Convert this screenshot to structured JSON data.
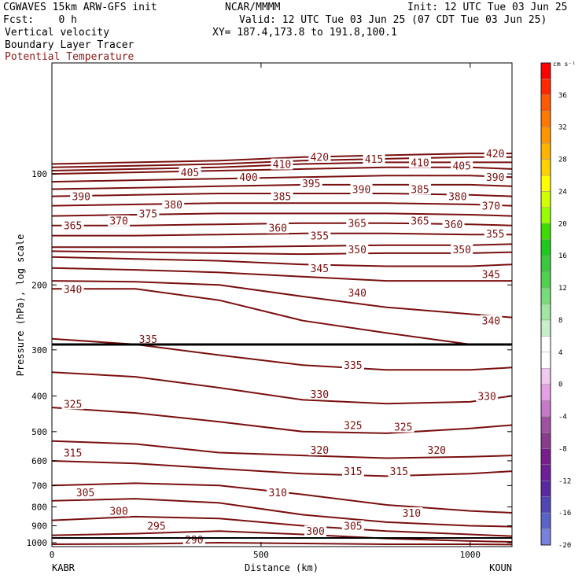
{
  "header": {
    "model": "CGWAVES 15km ARW-GFS init",
    "org": "NCAR/MMMM",
    "init": "Init: 12 UTC Tue 03 Jun 25",
    "fcst": "Fcst:    0 h",
    "valid": "Valid: 12 UTC Tue 03 Jun 25 (07 CDT Tue 03 Jun 25)",
    "field1": "Vertical velocity",
    "xy": "XY= 187.4,173.8 to 191.8,100.1",
    "field2": "Boundary Layer Tracer",
    "field3": "Potential Temperature"
  },
  "colors": {
    "contour": "#7a0f0f",
    "field3_label": "#8b1a1a"
  },
  "chart_data": {
    "type": "line",
    "subtype": "vertical cross-section contour",
    "ylabel": "Pressure (hPa), log scale",
    "xlabel": "Distance (km)",
    "x_end_labels": {
      "left": "KABR",
      "right": "KOUN"
    },
    "xlim": [
      0,
      1100
    ],
    "ylim_hpa": [
      1025,
      50
    ],
    "y_scale": "log",
    "x_ticks": [
      0,
      500,
      1000
    ],
    "y_ticks": [
      100,
      200,
      300,
      400,
      500,
      600,
      700,
      800,
      900,
      1000
    ],
    "colorbar": {
      "unit": "cm s⁻¹",
      "labels": [
        "36",
        "32",
        "28",
        "24",
        "20",
        "16",
        "12",
        "8",
        "4",
        "0",
        "-4",
        "-8",
        "-12",
        "-16",
        "-20"
      ],
      "bins": [
        "#ff0000",
        "#ff2800",
        "#ff5a00",
        "#ff7800",
        "#ff9600",
        "#ffb400",
        "#ffd200",
        "#ffff00",
        "#d2ff00",
        "#96ff00",
        "#3cdc00",
        "#1ec81e",
        "#3cc83c",
        "#50d250",
        "#78dc78",
        "#a0e6a0",
        "#c8f0c8",
        "#ffffff",
        "#ffffff",
        "#f0c8f0",
        "#e6a0e6",
        "#c878c8",
        "#a050a0",
        "#8c3c8c",
        "#781e8c",
        "#6e1e96",
        "#5a28a0",
        "#5046b4",
        "#5a64c8",
        "#7882dc"
      ]
    },
    "series": [
      {
        "name": "290",
        "x": [
          0,
          200,
          400,
          600,
          800,
          1000,
          1100
        ],
        "y": [
          1010,
          1008,
          1000,
          1005,
          1010,
          1010,
          1012
        ]
      },
      {
        "name": "295",
        "x": [
          0,
          200,
          400,
          600,
          800,
          1000,
          1100
        ],
        "y": [
          955,
          945,
          930,
          950,
          975,
          990,
          995
        ]
      },
      {
        "name": "300",
        "x": [
          0,
          200,
          400,
          600,
          800,
          1000,
          1100
        ],
        "y": [
          870,
          850,
          860,
          900,
          930,
          950,
          960
        ]
      },
      {
        "name": "305",
        "x": [
          0,
          200,
          400,
          600,
          800,
          1000,
          1100
        ],
        "y": [
          770,
          760,
          780,
          840,
          880,
          900,
          905
        ]
      },
      {
        "name": "310",
        "x": [
          0,
          200,
          400,
          600,
          800,
          1000,
          1100
        ],
        "y": [
          700,
          690,
          700,
          740,
          790,
          820,
          830
        ]
      },
      {
        "name": "315",
        "x": [
          0,
          200,
          400,
          600,
          800,
          1000,
          1100
        ],
        "y": [
          600,
          610,
          630,
          650,
          660,
          650,
          640
        ]
      },
      {
        "name": "320",
        "x": [
          0,
          200,
          400,
          600,
          800,
          1000,
          1100
        ],
        "y": [
          530,
          540,
          570,
          580,
          590,
          585,
          580
        ]
      },
      {
        "name": "325",
        "x": [
          0,
          200,
          400,
          600,
          800,
          1000,
          1100
        ],
        "y": [
          430,
          445,
          470,
          500,
          505,
          490,
          480
        ]
      },
      {
        "name": "330",
        "x": [
          0,
          200,
          400,
          600,
          800,
          1000,
          1100
        ],
        "y": [
          345,
          355,
          380,
          410,
          420,
          415,
          400
        ]
      },
      {
        "name": "335",
        "x": [
          0,
          200,
          400,
          600,
          800,
          1000,
          1100
        ],
        "y": [
          280,
          290,
          310,
          330,
          340,
          340,
          335
        ]
      },
      {
        "name": "340",
        "x": [
          0,
          200,
          400,
          600,
          800,
          1000,
          1100
        ],
        "y": [
          205,
          205,
          220,
          250,
          270,
          290,
          290
        ]
      },
      {
        "name": "345",
        "x": [
          0,
          200,
          400,
          600,
          800,
          1000,
          1100
        ],
        "y": [
          195,
          196,
          200,
          215,
          230,
          240,
          245
        ]
      },
      {
        "name": "350",
        "x": [
          0,
          200,
          400,
          600,
          800,
          1000,
          1100
        ],
        "y": [
          180,
          182,
          185,
          190,
          195,
          195,
          195
        ]
      },
      {
        "name": "355",
        "x": [
          0,
          200,
          400,
          600,
          800,
          1000,
          1100
        ],
        "y": [
          168,
          170,
          172,
          176,
          178,
          178,
          176
        ]
      },
      {
        "name": "360",
        "x": [
          0,
          200,
          400,
          600,
          800,
          1000,
          1100
        ],
        "y": [
          162,
          163,
          164,
          165,
          164,
          164,
          163
        ]
      },
      {
        "name": "365",
        "x": [
          0,
          200,
          400,
          600,
          800,
          1000,
          1100
        ],
        "y": [
          158,
          158,
          158,
          157,
          156,
          156,
          155
        ]
      },
      {
        "name": "370",
        "x": [
          0,
          200,
          400,
          600,
          800,
          1000,
          1100
        ],
        "y": [
          147,
          147,
          146,
          145,
          145,
          146,
          146
        ]
      },
      {
        "name": "375",
        "x": [
          0,
          200,
          400,
          600,
          800,
          1000,
          1100
        ],
        "y": [
          138,
          138,
          137,
          136,
          136,
          137,
          138
        ]
      },
      {
        "name": "380",
        "x": [
          0,
          200,
          400,
          600,
          800,
          1000,
          1100
        ],
        "y": [
          130,
          129,
          128,
          128,
          128,
          129,
          130
        ]
      },
      {
        "name": "385",
        "x": [
          0,
          200,
          400,
          600,
          800,
          1000,
          1100
        ],
        "y": [
          122,
          121,
          120,
          120,
          120,
          121,
          122
        ]
      },
      {
        "name": "390",
        "x": [
          0,
          200,
          400,
          600,
          800,
          1000,
          1100
        ],
        "y": [
          115,
          114,
          113,
          113,
          113,
          114,
          115
        ]
      },
      {
        "name": "395",
        "x": [
          0,
          200,
          400,
          600,
          800,
          1000,
          1100
        ],
        "y": [
          110,
          109,
          108,
          107,
          107,
          107,
          108
        ]
      },
      {
        "name": "400",
        "x": [
          0,
          200,
          400,
          600,
          800,
          1000,
          1100
        ],
        "y": [
          105,
          104,
          103,
          102,
          101,
          101,
          102
        ]
      },
      {
        "name": "405",
        "x": [
          0,
          200,
          400,
          600,
          800,
          1000,
          1100
        ],
        "y": [
          100,
          99,
          98,
          97,
          96,
          96,
          97
        ]
      },
      {
        "name": "410",
        "x": [
          0,
          200,
          400,
          600,
          800,
          1000,
          1100
        ],
        "y": [
          98,
          97,
          96,
          94,
          93,
          93,
          93
        ]
      },
      {
        "name": "415",
        "x": [
          0,
          200,
          400,
          600,
          800,
          1000,
          1100
        ],
        "y": [
          96,
          95,
          94,
          92,
          91,
          90,
          90
        ]
      },
      {
        "name": "420",
        "x": [
          0,
          200,
          400,
          600,
          800,
          1000,
          1100
        ],
        "y": [
          94,
          93,
          92,
          90,
          89,
          88,
          88
        ]
      }
    ],
    "contour_labels": [
      {
        "text": "420",
        "x": 640,
        "y": 90
      },
      {
        "text": "415",
        "x": 770,
        "y": 91
      },
      {
        "text": "420",
        "x": 1060,
        "y": 88
      },
      {
        "text": "410",
        "x": 550,
        "y": 94
      },
      {
        "text": "410",
        "x": 880,
        "y": 93
      },
      {
        "text": "405",
        "x": 330,
        "y": 99
      },
      {
        "text": "405",
        "x": 980,
        "y": 95
      },
      {
        "text": "400",
        "x": 470,
        "y": 102
      },
      {
        "text": "390",
        "x": 1060,
        "y": 102
      },
      {
        "text": "395",
        "x": 620,
        "y": 106
      },
      {
        "text": "390",
        "x": 740,
        "y": 110
      },
      {
        "text": "385",
        "x": 880,
        "y": 110
      },
      {
        "text": "390",
        "x": 70,
        "y": 115
      },
      {
        "text": "385",
        "x": 550,
        "y": 115
      },
      {
        "text": "380",
        "x": 290,
        "y": 121
      },
      {
        "text": "380",
        "x": 970,
        "y": 115
      },
      {
        "text": "375",
        "x": 230,
        "y": 128
      },
      {
        "text": "370",
        "x": 1050,
        "y": 122
      },
      {
        "text": "370",
        "x": 160,
        "y": 134
      },
      {
        "text": "365",
        "x": 50,
        "y": 138
      },
      {
        "text": "360",
        "x": 540,
        "y": 140
      },
      {
        "text": "365",
        "x": 730,
        "y": 136
      },
      {
        "text": "365",
        "x": 880,
        "y": 134
      },
      {
        "text": "360",
        "x": 960,
        "y": 137
      },
      {
        "text": "355",
        "x": 640,
        "y": 147
      },
      {
        "text": "355",
        "x": 1060,
        "y": 145
      },
      {
        "text": "350",
        "x": 730,
        "y": 160
      },
      {
        "text": "350",
        "x": 980,
        "y": 160
      },
      {
        "text": "345",
        "x": 640,
        "y": 180
      },
      {
        "text": "345",
        "x": 1050,
        "y": 187
      },
      {
        "text": "340",
        "x": 50,
        "y": 205
      },
      {
        "text": "340",
        "x": 730,
        "y": 210
      },
      {
        "text": "340",
        "x": 1050,
        "y": 250
      },
      {
        "text": "335",
        "x": 230,
        "y": 280
      },
      {
        "text": "335",
        "x": 720,
        "y": 330
      },
      {
        "text": "330",
        "x": 640,
        "y": 395
      },
      {
        "text": "330",
        "x": 1040,
        "y": 400
      },
      {
        "text": "325",
        "x": 50,
        "y": 420
      },
      {
        "text": "325",
        "x": 720,
        "y": 480
      },
      {
        "text": "325",
        "x": 840,
        "y": 485
      },
      {
        "text": "320",
        "x": 640,
        "y": 560
      },
      {
        "text": "320",
        "x": 920,
        "y": 560
      },
      {
        "text": "315",
        "x": 50,
        "y": 570
      },
      {
        "text": "315",
        "x": 720,
        "y": 640
      },
      {
        "text": "315",
        "x": 830,
        "y": 640
      },
      {
        "text": "310",
        "x": 540,
        "y": 730
      },
      {
        "text": "310",
        "x": 860,
        "y": 830
      },
      {
        "text": "305",
        "x": 80,
        "y": 730
      },
      {
        "text": "305",
        "x": 720,
        "y": 900
      },
      {
        "text": "300",
        "x": 160,
        "y": 820
      },
      {
        "text": "300",
        "x": 630,
        "y": 930
      },
      {
        "text": "295",
        "x": 250,
        "y": 900
      },
      {
        "text": "290",
        "x": 340,
        "y": 980
      }
    ]
  }
}
